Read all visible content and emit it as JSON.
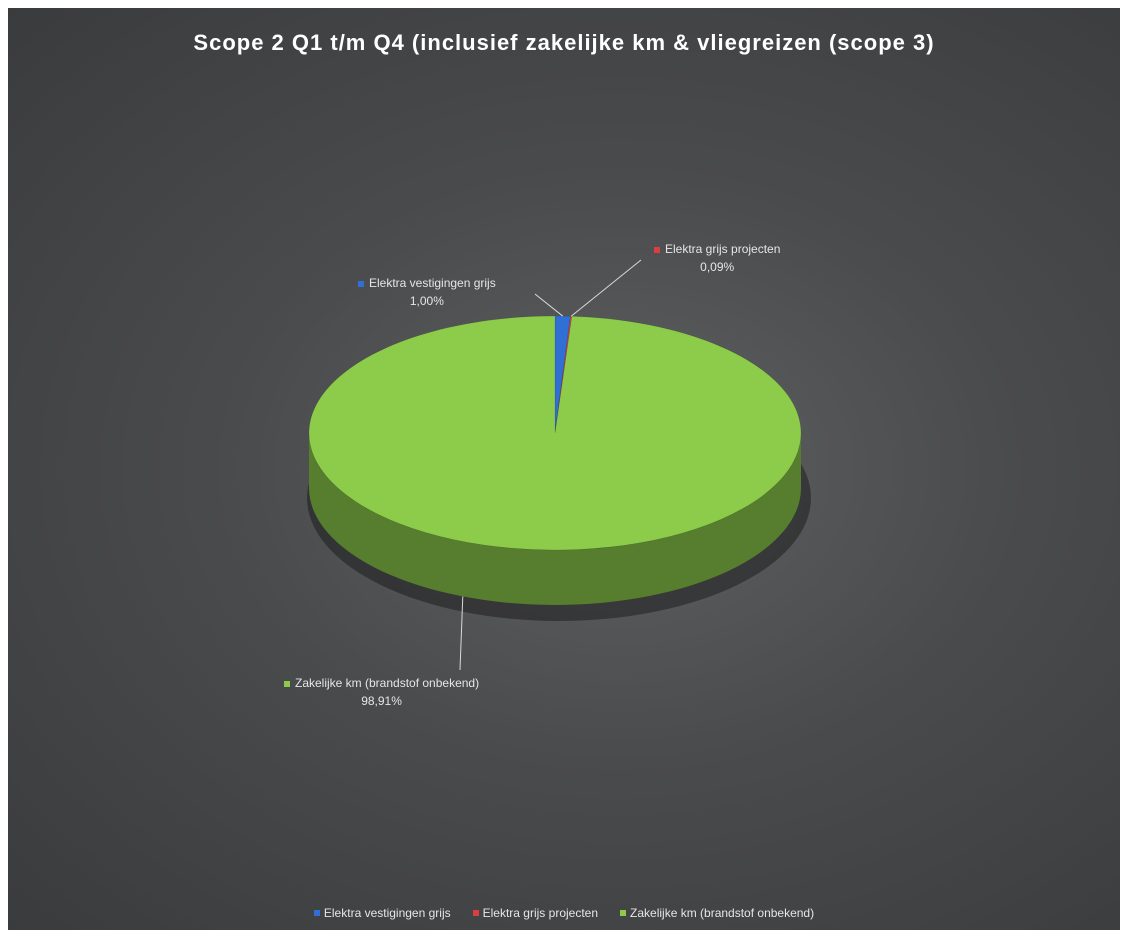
{
  "chart_data": {
    "type": "pie",
    "title": "Scope 2 Q1 t/m Q4 (inclusief zakelijke km & vliegreizen (scope 3)",
    "slices": [
      {
        "label": "Elektra vestigingen grijs",
        "value": 1.0,
        "value_label": "1,00%",
        "color": "#2f6fd6"
      },
      {
        "label": "Elektra grijs projecten",
        "value": 0.09,
        "value_label": "0,09%",
        "color": "#d8403f"
      },
      {
        "label": "Zakelijke km (brandstof onbekend)",
        "value": 98.91,
        "value_label": "98,91%",
        "color": "#8ccc4a"
      }
    ],
    "legend_position": "bottom",
    "style": "3d-pie"
  }
}
